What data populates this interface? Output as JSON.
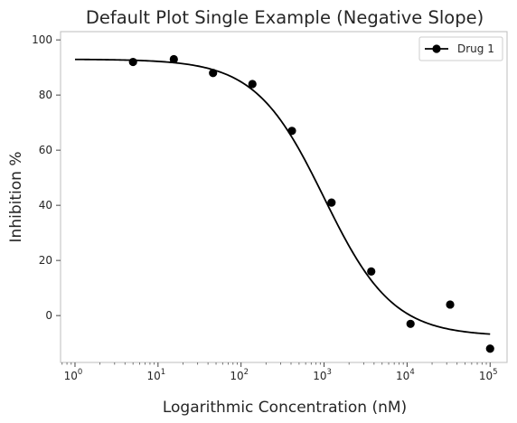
{
  "chart_data": {
    "type": "scatter",
    "title": "Default Plot Single Example (Negative Slope)",
    "xlabel": "Logarithmic Concentration (nM)",
    "ylabel": "Inhibition %",
    "xscale": "log",
    "xlim": [
      0.67,
      160000
    ],
    "ylim": [
      -17,
      103
    ],
    "x_ticks": [
      {
        "value": 1,
        "base": "10",
        "exp": "0"
      },
      {
        "value": 10,
        "base": "10",
        "exp": "1"
      },
      {
        "value": 100,
        "base": "10",
        "exp": "2"
      },
      {
        "value": 1000,
        "base": "10",
        "exp": "3"
      },
      {
        "value": 10000,
        "base": "10",
        "exp": "4"
      },
      {
        "value": 100000,
        "base": "10",
        "exp": "5"
      }
    ],
    "y_ticks": [
      {
        "value": 0,
        "label": "0"
      },
      {
        "value": 20,
        "label": "20"
      },
      {
        "value": 40,
        "label": "40"
      },
      {
        "value": 60,
        "label": "60"
      },
      {
        "value": 80,
        "label": "80"
      },
      {
        "value": 100,
        "label": "100"
      }
    ],
    "grid": false,
    "legend_position": "top-right",
    "series": [
      {
        "name": "Drug 1",
        "color": "#000000",
        "marker": "circle",
        "points": [
          {
            "x": 5,
            "y": 92
          },
          {
            "x": 15.5,
            "y": 93
          },
          {
            "x": 46,
            "y": 88
          },
          {
            "x": 137,
            "y": 84
          },
          {
            "x": 410,
            "y": 67
          },
          {
            "x": 1230,
            "y": 41
          },
          {
            "x": 3700,
            "y": 16
          },
          {
            "x": 11000,
            "y": -3
          },
          {
            "x": 33000,
            "y": 4
          },
          {
            "x": 100000,
            "y": -12
          }
        ],
        "fit": {
          "top": 93,
          "bottom": -7.5,
          "ic50": 1000,
          "hill": 1.05,
          "x_start": 1,
          "x_end": 100000
        }
      }
    ]
  }
}
